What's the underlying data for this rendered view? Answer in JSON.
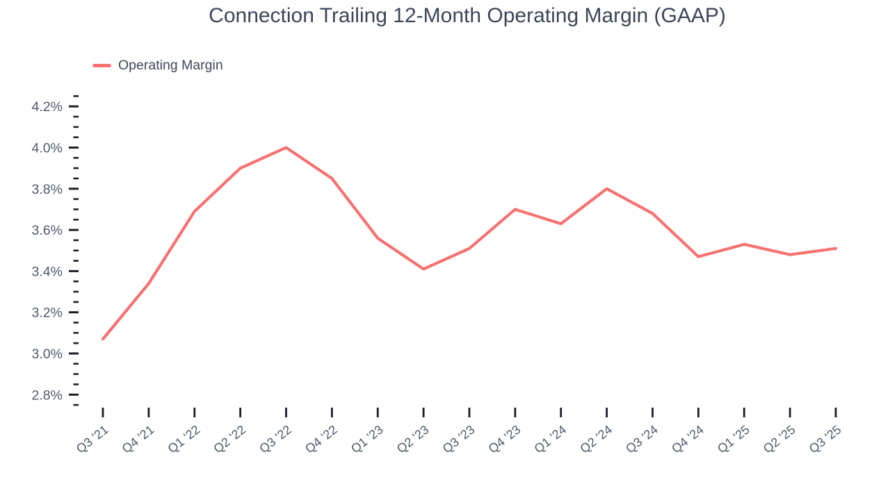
{
  "header": {
    "title": "Connection Trailing 12-Month Operating Margin (GAAP)"
  },
  "legend": {
    "label": "Operating Margin"
  },
  "chart_data": {
    "type": "line",
    "title": "Connection Trailing 12-Month Operating Margin (GAAP)",
    "categories": [
      "Q3 '21",
      "Q4 '21",
      "Q1 '22",
      "Q2 '22",
      "Q3 '22",
      "Q4 '22",
      "Q1 '23",
      "Q2 '23",
      "Q3 '23",
      "Q4 '23",
      "Q1 '24",
      "Q2 '24",
      "Q3 '24",
      "Q4 '24",
      "Q1 '25",
      "Q2 '25",
      "Q3 '25"
    ],
    "series": [
      {
        "name": "Operating Margin",
        "values": [
          3.07,
          3.34,
          3.69,
          3.9,
          4.0,
          3.85,
          3.56,
          3.41,
          3.51,
          3.7,
          3.63,
          3.8,
          3.68,
          3.47,
          3.53,
          3.48,
          3.51
        ]
      }
    ],
    "unit": "%",
    "xlabel": "",
    "ylabel": "",
    "ylim": [
      2.75,
      4.25
    ],
    "y_major_ticks": [
      2.8,
      3.0,
      3.2,
      3.4,
      3.6,
      3.8,
      4.0,
      4.2
    ],
    "y_tick_labels": [
      "2.8%",
      "3.0%",
      "3.2%",
      "3.4%",
      "3.6%",
      "3.8%",
      "4.0%",
      "4.2%"
    ],
    "y_minor_step": 0.05,
    "grid": false,
    "legend_position": "top-left",
    "colors": {
      "line": "#F87171",
      "title_text": "#3A4657",
      "axis_label_text": "#4D5A6D",
      "tick_marks": "#1A1E26"
    }
  }
}
